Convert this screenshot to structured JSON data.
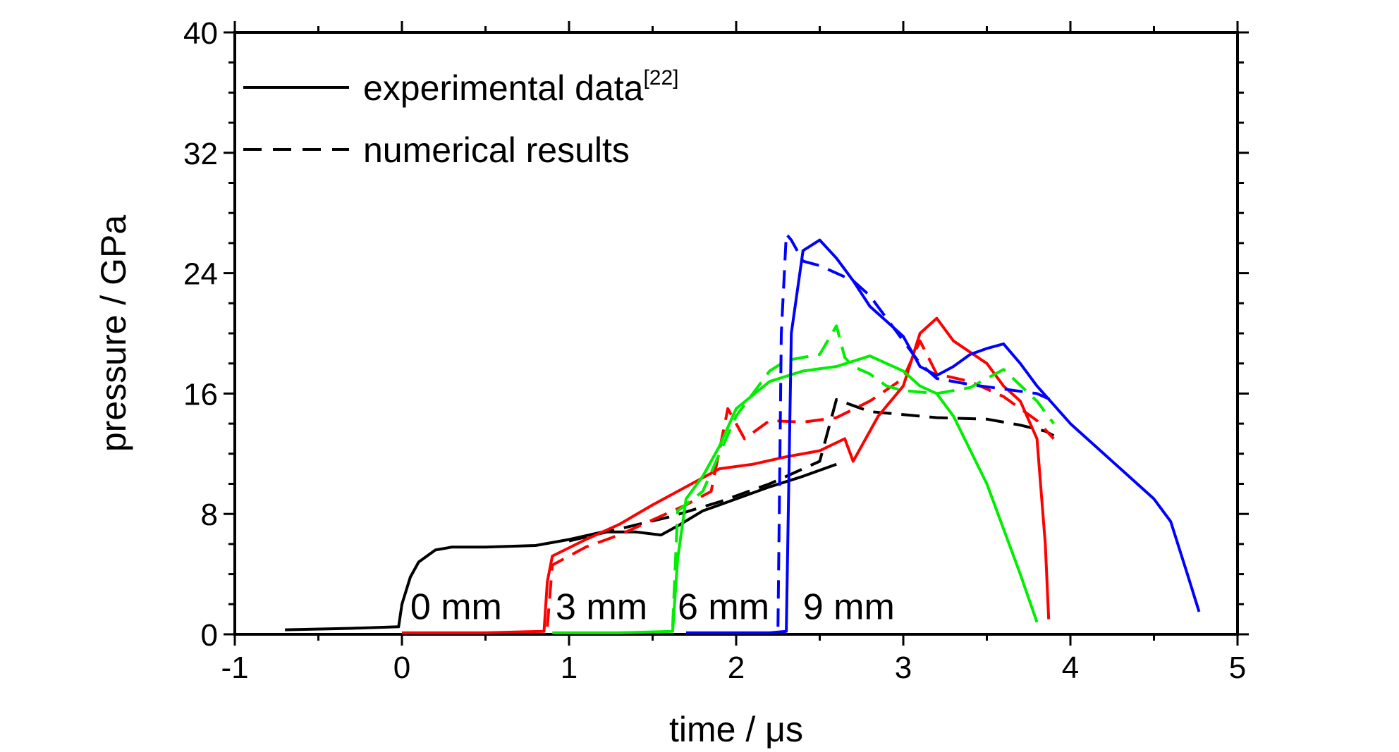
{
  "chart_data": {
    "type": "line",
    "xlabel": "time / μs",
    "ylabel": "pressure / GPa",
    "xlim": [
      -1,
      5
    ],
    "ylim": [
      0,
      40
    ],
    "x_ticks": [
      "-1",
      "0",
      "1",
      "2",
      "3",
      "4",
      "5"
    ],
    "y_ticks": [
      "0",
      "8",
      "16",
      "24",
      "32",
      "40"
    ],
    "grid": false,
    "legend": {
      "placement": "top-left",
      "entries": [
        {
          "label": "experimental data",
          "superscript": "[22]",
          "style": "solid"
        },
        {
          "label": "numerical results",
          "style": "dashed"
        }
      ]
    },
    "annotations": [
      {
        "text": "0 mm",
        "x": 0.05,
        "y": 1.0
      },
      {
        "text": "3 mm",
        "x": 0.92,
        "y": 1.0
      },
      {
        "text": "6 mm",
        "x": 1.65,
        "y": 1.0
      },
      {
        "text": "9 mm",
        "x": 2.4,
        "y": 1.0
      }
    ],
    "colors": {
      "0 mm": "#000000",
      "3 mm": "#ff0000",
      "6 mm": "#00ee00",
      "9 mm": "#0000ff"
    },
    "series": [
      {
        "gauge": "0 mm",
        "kind": "experimental",
        "color": "#000000",
        "x": [
          -0.7,
          -0.3,
          -0.02,
          0.0,
          0.05,
          0.1,
          0.2,
          0.3,
          0.5,
          0.8,
          1.0,
          1.2,
          1.4,
          1.55,
          1.65,
          1.8,
          2.0,
          2.2,
          2.4,
          2.6
        ],
        "y": [
          0.3,
          0.4,
          0.5,
          2.0,
          3.8,
          4.8,
          5.6,
          5.8,
          5.8,
          5.9,
          6.3,
          6.8,
          6.8,
          6.6,
          7.2,
          8.2,
          9.0,
          9.8,
          10.5,
          11.3
        ]
      },
      {
        "gauge": "0 mm",
        "kind": "numerical",
        "color": "#000000",
        "x": [
          1.0,
          1.3,
          1.6,
          1.9,
          2.2,
          2.5,
          2.6,
          2.8,
          3.0,
          3.2,
          3.5,
          3.7,
          3.85,
          3.9
        ],
        "y": [
          6.2,
          7.0,
          7.8,
          8.8,
          10.0,
          11.5,
          15.6,
          14.8,
          14.6,
          14.4,
          14.3,
          13.9,
          13.5,
          13.2
        ]
      },
      {
        "gauge": "3 mm",
        "kind": "experimental",
        "color": "#ff0000",
        "x": [
          0.0,
          0.5,
          0.85,
          0.87,
          0.9,
          1.1,
          1.3,
          1.5,
          1.7,
          1.9,
          2.1,
          2.3,
          2.5,
          2.65,
          2.7,
          2.85,
          3.0,
          3.1,
          3.2,
          3.3,
          3.5,
          3.6,
          3.7,
          3.8,
          3.85,
          3.87
        ],
        "y": [
          0.1,
          0.1,
          0.2,
          3.5,
          5.2,
          6.3,
          7.3,
          8.6,
          9.8,
          11.0,
          11.3,
          11.8,
          12.2,
          13.0,
          11.5,
          14.5,
          16.5,
          20.0,
          21.0,
          19.5,
          18.0,
          16.5,
          15.5,
          13.0,
          6.0,
          1.0
        ]
      },
      {
        "gauge": "3 mm",
        "kind": "numerical",
        "color": "#ff0000",
        "x": [
          0.87,
          0.9,
          1.1,
          1.3,
          1.5,
          1.7,
          1.85,
          1.95,
          2.05,
          2.2,
          2.4,
          2.6,
          2.8,
          3.0,
          3.1,
          3.2,
          3.4,
          3.6,
          3.8,
          3.9
        ],
        "y": [
          0.5,
          4.6,
          5.8,
          6.6,
          7.6,
          8.6,
          9.5,
          15.0,
          13.0,
          14.2,
          14.1,
          14.4,
          15.5,
          17.0,
          19.5,
          17.3,
          16.8,
          15.8,
          14.2,
          13.0
        ]
      },
      {
        "gauge": "6 mm",
        "kind": "experimental",
        "color": "#00ee00",
        "x": [
          0.9,
          1.3,
          1.62,
          1.65,
          1.7,
          1.8,
          1.9,
          2.0,
          2.2,
          2.4,
          2.6,
          2.8,
          3.0,
          3.1,
          3.2,
          3.3,
          3.5,
          3.6,
          3.7,
          3.8
        ],
        "y": [
          0.1,
          0.1,
          0.2,
          5.0,
          9.0,
          10.5,
          12.5,
          15.0,
          16.8,
          17.5,
          17.8,
          18.5,
          17.5,
          16.5,
          16.0,
          14.5,
          10.0,
          7.0,
          4.0,
          0.8
        ]
      },
      {
        "gauge": "6 mm",
        "kind": "numerical",
        "color": "#00ee00",
        "x": [
          1.62,
          1.65,
          1.8,
          2.0,
          2.2,
          2.3,
          2.5,
          2.6,
          2.65,
          2.7,
          2.8,
          2.9,
          3.0,
          3.2,
          3.4,
          3.6,
          3.8,
          3.9
        ],
        "y": [
          0.5,
          8.2,
          9.5,
          14.5,
          17.5,
          18.2,
          18.6,
          20.5,
          18.4,
          17.8,
          17.3,
          16.5,
          16.2,
          16.0,
          16.4,
          17.6,
          15.5,
          14.0
        ]
      },
      {
        "gauge": "9 mm",
        "kind": "experimental",
        "color": "#0000ff",
        "x": [
          1.7,
          2.2,
          2.3,
          2.33,
          2.4,
          2.5,
          2.6,
          2.7,
          2.8,
          2.9,
          3.0,
          3.1,
          3.2,
          3.3,
          3.4,
          3.5,
          3.6,
          3.7,
          3.8,
          4.0,
          4.2,
          4.4,
          4.5,
          4.6,
          4.7,
          4.77
        ],
        "y": [
          0.1,
          0.1,
          0.2,
          20.0,
          25.5,
          26.2,
          25.0,
          23.5,
          21.8,
          20.8,
          19.8,
          17.8,
          17.2,
          17.8,
          18.6,
          19.0,
          19.3,
          18.0,
          16.5,
          14.0,
          12.0,
          10.0,
          9.0,
          7.5,
          4.0,
          1.5
        ]
      },
      {
        "gauge": "9 mm",
        "kind": "numerical",
        "color": "#0000ff",
        "x": [
          2.25,
          2.27,
          2.3,
          2.33,
          2.4,
          2.5,
          2.6,
          2.7,
          2.8,
          2.9,
          3.0,
          3.1,
          3.2,
          3.4,
          3.6,
          3.8,
          3.9
        ],
        "y": [
          0.5,
          20.0,
          26.6,
          26.2,
          24.8,
          24.5,
          24.0,
          23.5,
          22.5,
          21.0,
          19.5,
          18.0,
          17.0,
          16.6,
          16.3,
          16.0,
          15.5
        ]
      }
    ]
  }
}
